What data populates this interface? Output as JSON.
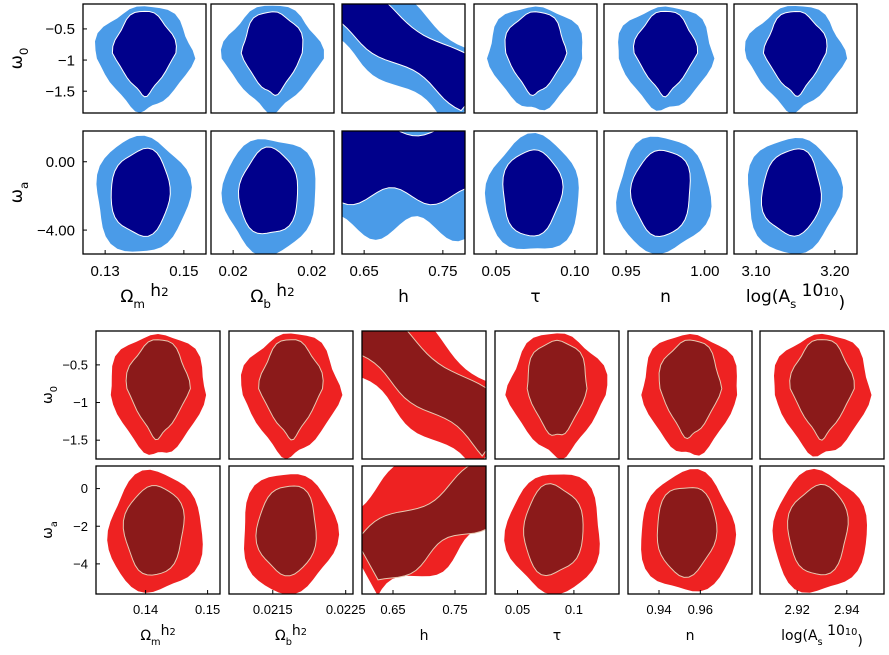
{
  "chart_data": [
    {
      "type": "contour",
      "panel": "top",
      "colors": {
        "inner": "#00008b",
        "outer": "#4a9be8",
        "edge": "#ffffff"
      },
      "columns": [
        {
          "xlabel": "Ω",
          "xlabel_sub": "m",
          "xlabel_rest": " h",
          "xlabel_sup": "2",
          "xticks": [
            "0.13",
            "0.15"
          ],
          "xlim": [
            0.125,
            0.155
          ]
        },
        {
          "xlabel": "Ω",
          "xlabel_sub": "b",
          "xlabel_rest": " h",
          "xlabel_sup": "2",
          "xticks": [
            "0.02",
            "0.02"
          ],
          "xlim": [
            0.0195,
            0.0245
          ]
        },
        {
          "xlabel": "h",
          "xlabel_sub": "",
          "xlabel_rest": "",
          "xlabel_sup": "",
          "xticks": [
            "0.65",
            "0.75"
          ],
          "xlim": [
            0.6,
            0.8
          ]
        },
        {
          "xlabel": "τ",
          "xlabel_sub": "",
          "xlabel_rest": "",
          "xlabel_sup": "",
          "xticks": [
            "0.05",
            "0.10"
          ],
          "xlim": [
            0.05,
            0.14
          ]
        },
        {
          "xlabel": "n",
          "xlabel_sub": "",
          "xlabel_rest": "",
          "xlabel_sup": "",
          "xticks": [
            "0.95",
            "1.00"
          ],
          "xlim": [
            0.93,
            1.02
          ]
        },
        {
          "xlabel": "log(A",
          "xlabel_sub": "s",
          "xlabel_rest": " 10",
          "xlabel_sup": "10",
          "xlabel_end": ")",
          "xticks": [
            "3.10",
            "3.20"
          ],
          "xlim": [
            3.02,
            3.22
          ]
        }
      ],
      "rows": [
        {
          "ylabel": "ω",
          "ylabel_sub": "0",
          "yticks": [
            "−0.5",
            "−1",
            "−1.5"
          ],
          "ytick_values": [
            -0.5,
            -1,
            -1.5
          ],
          "ylim": [
            -1.85,
            -0.1
          ]
        },
        {
          "ylabel": "ω",
          "ylabel_sub": "a",
          "yticks": [
            "0.00",
            "−4.00"
          ],
          "ytick_values": [
            0,
            -4
          ],
          "ylim": [
            -5.4,
            1.8
          ]
        }
      ]
    },
    {
      "type": "contour",
      "panel": "bottom",
      "colors": {
        "inner": "#8b1a1a",
        "outer": "#ee2222",
        "edge": "#e8c8b0"
      },
      "columns": [
        {
          "xlabel": "Ω",
          "xlabel_sub": "m",
          "xlabel_rest": "h",
          "xlabel_sup": "2",
          "xticks": [
            "0.14",
            "0.15"
          ],
          "xtick_values": [
            0.14,
            0.15
          ],
          "xlim": [
            0.132,
            0.152
          ]
        },
        {
          "xlabel": "Ω",
          "xlabel_sub": "b",
          "xlabel_rest": "h",
          "xlabel_sup": "2",
          "xticks": [
            "0.0215",
            "0.0225"
          ],
          "xtick_values": [
            0.0215,
            0.0225
          ],
          "xlim": [
            0.0209,
            0.0226
          ]
        },
        {
          "xlabel": "h",
          "xlabel_sub": "",
          "xlabel_rest": "",
          "xlabel_sup": "",
          "xticks": [
            "0.65",
            "0.75"
          ],
          "xtick_values": [
            0.65,
            0.75
          ],
          "xlim": [
            0.6,
            0.8
          ]
        },
        {
          "xlabel": "τ",
          "xlabel_sub": "",
          "xlabel_rest": "",
          "xlabel_sup": "",
          "xticks": [
            "0.05",
            "0.1"
          ],
          "xtick_values": [
            0.05,
            0.1
          ],
          "xlim": [
            0.03,
            0.14
          ]
        },
        {
          "xlabel": "n",
          "xlabel_sub": "",
          "xlabel_rest": "",
          "xlabel_sup": "",
          "xticks": [
            "0.94",
            "0.96"
          ],
          "xtick_values": [
            0.94,
            0.96
          ],
          "xlim": [
            0.925,
            0.985
          ]
        },
        {
          "xlabel": "log(A",
          "xlabel_sub": "s",
          "xlabel_rest": " 10",
          "xlabel_sup": "10",
          "xlabel_end": ")",
          "xticks": [
            "2.92",
            "2.94"
          ],
          "xtick_values": [
            2.92,
            2.94
          ],
          "xlim": [
            2.905,
            2.955
          ]
        }
      ],
      "rows": [
        {
          "ylabel": "ω",
          "ylabel_sub": "0",
          "yticks": [
            "−0.5",
            "−1",
            "−1.5"
          ],
          "ytick_values": [
            -0.5,
            -1,
            -1.5
          ],
          "ylim": [
            -1.75,
            -0.05
          ]
        },
        {
          "ylabel": "ω",
          "ylabel_sub": "a",
          "yticks": [
            "0",
            "−2",
            "−4"
          ],
          "ytick_values": [
            0,
            -2,
            -4
          ],
          "ylim": [
            -5.6,
            1.2
          ]
        }
      ]
    }
  ]
}
